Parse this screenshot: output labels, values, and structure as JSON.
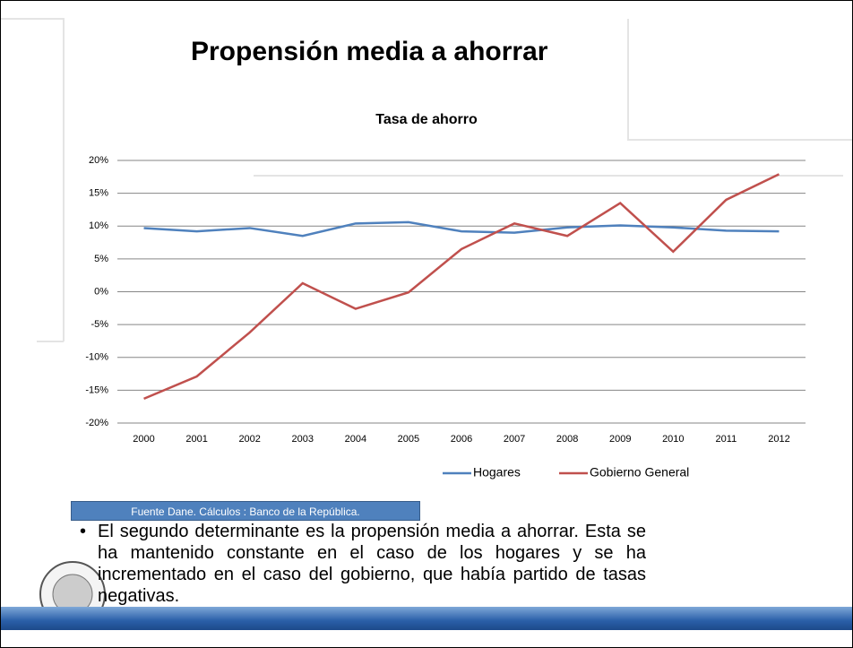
{
  "slide": {
    "title": "Propensión media a ahorrar",
    "source": "Fuente Dane. Cálculos : Banco de la República.",
    "bullet": "El segundo determinante es la propensión media a ahorrar. Esta se ha mantenido constante en el caso de los hogares y se ha incrementado en el caso del gobierno, que había partido de tasas negativas."
  },
  "chart_data": {
    "type": "line",
    "title": "Tasa de ahorro",
    "categories": [
      "2000",
      "2001",
      "2002",
      "2003",
      "2004",
      "2005",
      "2006",
      "2007",
      "2008",
      "2009",
      "2010",
      "2011",
      "2012"
    ],
    "series": [
      {
        "name": "Hogares",
        "color": "#4f81bd",
        "values": [
          9.7,
          9.2,
          9.7,
          8.5,
          10.4,
          10.6,
          9.2,
          9.0,
          9.8,
          10.1,
          9.8,
          9.3,
          9.2
        ]
      },
      {
        "name": "Gobierno General",
        "color": "#c0504d",
        "values": [
          -16.3,
          -12.9,
          -6.2,
          1.3,
          -2.6,
          -0.1,
          6.5,
          10.4,
          8.5,
          13.5,
          6.1,
          14.0,
          17.9
        ]
      }
    ],
    "ylim": [
      -20,
      20
    ],
    "yticks": [
      {
        "value": -20,
        "label": "-20%"
      },
      {
        "value": -15,
        "label": "-15%"
      },
      {
        "value": -10,
        "label": "-10%"
      },
      {
        "value": -5,
        "label": "-5%"
      },
      {
        "value": 0,
        "label": "0%"
      },
      {
        "value": 5,
        "label": "5%"
      },
      {
        "value": 10,
        "label": "10%"
      },
      {
        "value": 15,
        "label": "15%"
      },
      {
        "value": 20,
        "label": "20%"
      }
    ],
    "grid": true,
    "legend": "bottom"
  }
}
